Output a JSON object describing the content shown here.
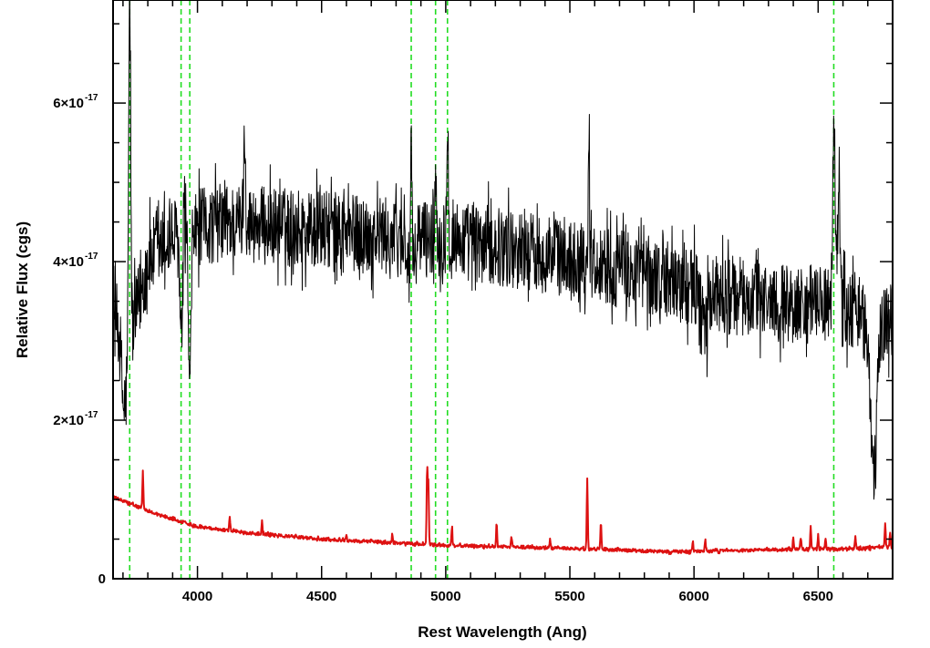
{
  "chart_data": {
    "type": "line",
    "title": "",
    "xlabel": "Rest Wavelength (Ang)",
    "ylabel": "Relative Flux (cgs)",
    "xlim": [
      3660,
      6800
    ],
    "ylim": [
      0,
      7.3e-17
    ],
    "grid": false,
    "x_ticks": [
      {
        "value": 4000,
        "label": "4000"
      },
      {
        "value": 4500,
        "label": "4500"
      },
      {
        "value": 5000,
        "label": "5000"
      },
      {
        "value": 5500,
        "label": "5500"
      },
      {
        "value": 6000,
        "label": "6000"
      },
      {
        "value": 6500,
        "label": "6500"
      }
    ],
    "y_ticks": [
      {
        "value": 0,
        "label": "0",
        "exponent": ""
      },
      {
        "value": 2e-17,
        "label": "2×10",
        "exponent": "-17"
      },
      {
        "value": 4e-17,
        "label": "4×10",
        "exponent": "-17"
      },
      {
        "value": 6e-17,
        "label": "6×10",
        "exponent": "-17"
      }
    ],
    "vertical_lines": {
      "color": "#22dd22",
      "x": [
        3727,
        3934,
        3969,
        4861,
        4959,
        5007,
        6563
      ]
    },
    "series": [
      {
        "role": "spectrum",
        "color": "#000000",
        "continuum": [
          [
            3660,
            3.3e-17
          ],
          [
            3730,
            3e-17
          ],
          [
            3800,
            4e-17
          ],
          [
            3900,
            4.3e-17
          ],
          [
            3980,
            4.4e-17
          ],
          [
            4100,
            4.5e-17
          ],
          [
            4300,
            4.45e-17
          ],
          [
            4500,
            4.4e-17
          ],
          [
            4800,
            4.3e-17
          ],
          [
            5000,
            4.3e-17
          ],
          [
            5300,
            4.15e-17
          ],
          [
            5600,
            4e-17
          ],
          [
            5900,
            3.75e-17
          ],
          [
            6100,
            3.6e-17
          ],
          [
            6300,
            3.5e-17
          ],
          [
            6500,
            3.45e-17
          ],
          [
            6650,
            3.4e-17
          ],
          [
            6700,
            3.2e-17
          ],
          [
            6800,
            3.3e-17
          ]
        ],
        "features": [
          {
            "x": 3727,
            "height": 4.5e-17,
            "width": 4
          },
          {
            "x": 3705,
            "height": -1e-17,
            "width": 10
          },
          {
            "x": 3934,
            "height": -1.5e-17,
            "width": 5
          },
          {
            "x": 3969,
            "height": -2.2e-17,
            "width": 5
          },
          {
            "x": 4190,
            "height": 1.1e-17,
            "width": 4
          },
          {
            "x": 4861,
            "height": 1.9e-17,
            "width": 3
          },
          {
            "x": 4861,
            "height": -7e-18,
            "width": 10
          },
          {
            "x": 4959,
            "height": 8e-18,
            "width": 3
          },
          {
            "x": 5007,
            "height": 1.7e-17,
            "width": 3
          },
          {
            "x": 5577,
            "height": 1.9e-17,
            "width": 2
          },
          {
            "x": 6563,
            "height": 2.2e-17,
            "width": 6
          },
          {
            "x": 6583,
            "height": 1.8e-17,
            "width": 4
          },
          {
            "x": 6725,
            "height": -2e-17,
            "width": 12
          },
          {
            "x": 6045,
            "height": -6e-18,
            "width": 10
          }
        ],
        "noise_amplitude": 5e-18,
        "sample_step": 1.5
      },
      {
        "role": "error",
        "color": "#dd1111",
        "continuum": [
          [
            3660,
            1.03e-17
          ],
          [
            3750,
            9.2e-18
          ],
          [
            3850,
            8e-18
          ],
          [
            4000,
            6.6e-18
          ],
          [
            4200,
            5.8e-18
          ],
          [
            4500,
            5e-18
          ],
          [
            4800,
            4.5e-18
          ],
          [
            5000,
            4.2e-18
          ],
          [
            5300,
            4e-18
          ],
          [
            5600,
            3.7e-18
          ],
          [
            5900,
            3.4e-18
          ],
          [
            6100,
            3.5e-18
          ],
          [
            6400,
            3.7e-18
          ],
          [
            6650,
            3.8e-18
          ],
          [
            6800,
            4e-18
          ]
        ],
        "features": [
          {
            "x": 3780,
            "height": 4.5e-18,
            "width": 2
          },
          {
            "x": 4130,
            "height": 1.8e-18,
            "width": 2
          },
          {
            "x": 4260,
            "height": 1.5e-18,
            "width": 2
          },
          {
            "x": 4600,
            "height": 6e-19,
            "width": 2
          },
          {
            "x": 4785,
            "height": 1.2e-18,
            "width": 2
          },
          {
            "x": 4925,
            "height": 9.6e-18,
            "width": 2
          },
          {
            "x": 4930,
            "height": 8e-18,
            "width": 2
          },
          {
            "x": 5025,
            "height": 2.5e-18,
            "width": 2
          },
          {
            "x": 5205,
            "height": 3e-18,
            "width": 2
          },
          {
            "x": 5265,
            "height": 1.4e-18,
            "width": 2
          },
          {
            "x": 5420,
            "height": 1e-18,
            "width": 2
          },
          {
            "x": 5570,
            "height": 8.8e-18,
            "width": 2
          },
          {
            "x": 5625,
            "height": 3.6e-18,
            "width": 2
          },
          {
            "x": 5995,
            "height": 1.2e-18,
            "width": 2
          },
          {
            "x": 6045,
            "height": 1.5e-18,
            "width": 2
          },
          {
            "x": 6400,
            "height": 1.5e-18,
            "width": 2
          },
          {
            "x": 6430,
            "height": 1.5e-18,
            "width": 2
          },
          {
            "x": 6470,
            "height": 2.8e-18,
            "width": 2
          },
          {
            "x": 6500,
            "height": 1.8e-18,
            "width": 2
          },
          {
            "x": 6530,
            "height": 1.2e-18,
            "width": 2
          },
          {
            "x": 6650,
            "height": 1.4e-18,
            "width": 2
          },
          {
            "x": 6770,
            "height": 3.2e-18,
            "width": 2
          },
          {
            "x": 6790,
            "height": 1.8e-18,
            "width": 2
          }
        ],
        "noise_amplitude": 2e-19,
        "sample_step": 2
      }
    ]
  }
}
